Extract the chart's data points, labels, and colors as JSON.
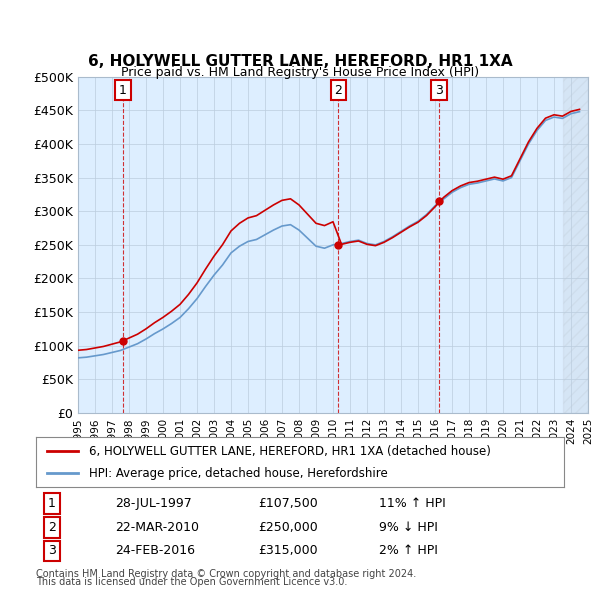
{
  "title": "6, HOLYWELL GUTTER LANE, HEREFORD, HR1 1XA",
  "subtitle": "Price paid vs. HM Land Registry's House Price Index (HPI)",
  "ylabel": "",
  "bg_color": "#ddeeff",
  "plot_bg_color": "#ddeeff",
  "y_min": 0,
  "y_max": 500000,
  "y_ticks": [
    0,
    50000,
    100000,
    150000,
    200000,
    250000,
    300000,
    350000,
    400000,
    450000,
    500000
  ],
  "y_tick_labels": [
    "£0",
    "£50K",
    "£100K",
    "£150K",
    "£200K",
    "£250K",
    "£300K",
    "£350K",
    "£400K",
    "£450K",
    "£500K"
  ],
  "sales": [
    {
      "date": "1997-07-28",
      "price": 107500,
      "label": "1"
    },
    {
      "date": "2010-03-22",
      "price": 250000,
      "label": "2"
    },
    {
      "date": "2016-02-24",
      "price": 315000,
      "label": "3"
    }
  ],
  "sale_info": [
    {
      "label": "1",
      "date": "28-JUL-1997",
      "price": "£107,500",
      "note": "11% ↑ HPI"
    },
    {
      "label": "2",
      "date": "22-MAR-2010",
      "price": "£250,000",
      "note": "9% ↓ HPI"
    },
    {
      "label": "3",
      "date": "24-FEB-2016",
      "price": "£315,000",
      "note": "2% ↑ HPI"
    }
  ],
  "legend_line1": "6, HOLYWELL GUTTER LANE, HEREFORD, HR1 1XA (detached house)",
  "legend_line2": "HPI: Average price, detached house, Herefordshire",
  "footer1": "Contains HM Land Registry data © Crown copyright and database right 2024.",
  "footer2": "This data is licensed under the Open Government Licence v3.0.",
  "hpi_color": "#6699cc",
  "price_color": "#cc0000",
  "vline_color": "#cc0000",
  "x_start_year": 1995,
  "x_end_year": 2025
}
